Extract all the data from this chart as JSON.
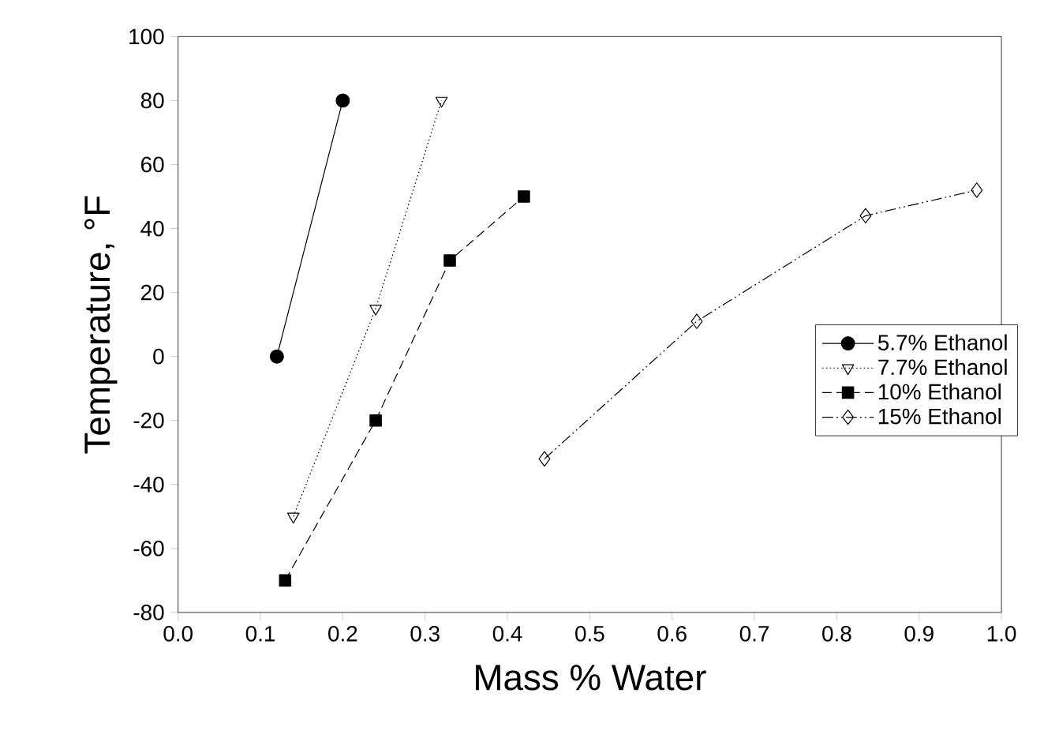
{
  "chart_data": {
    "type": "line",
    "xlabel": "Mass % Water",
    "ylabel": "Temperature, °F",
    "xlim": [
      0,
      1
    ],
    "xticks": [
      {
        "value": 0,
        "label": "0.0"
      },
      0.1,
      0.2,
      0.3,
      0.4,
      0.5,
      0.6,
      0.7,
      0.8,
      0.9,
      {
        "value": 1,
        "label": "1.0"
      }
    ],
    "ylim": [
      -80,
      100
    ],
    "yticks": [
      -80,
      -60,
      -40,
      -20,
      0,
      20,
      40,
      60,
      80,
      100
    ],
    "grid": false,
    "legend": "right",
    "series": [
      {
        "name": "5.7% Ethanol",
        "color": "#000000",
        "marker": "circle",
        "line_style": "solid",
        "x": [
          0.12,
          0.2
        ],
        "values": [
          0,
          80
        ]
      },
      {
        "name": "7.7% Ethanol",
        "color": "#000000",
        "marker": "triangle",
        "line_style": "dotted",
        "x": [
          0.14,
          0.24,
          0.32
        ],
        "values": [
          -50,
          15,
          80
        ]
      },
      {
        "name": "10% Ethanol",
        "color": "#000000",
        "marker": "square",
        "line_style": "dashed",
        "x": [
          0.13,
          0.24,
          0.33,
          0.42
        ],
        "values": [
          -70,
          -20,
          30,
          50
        ]
      },
      {
        "name": "15% Ethanol",
        "color": "#000000",
        "marker": "diamond",
        "line_style": "dashdotdot",
        "x": [
          0.445,
          0.63,
          0.835,
          0.97
        ],
        "values": [
          -32,
          11,
          44,
          52
        ]
      }
    ]
  }
}
